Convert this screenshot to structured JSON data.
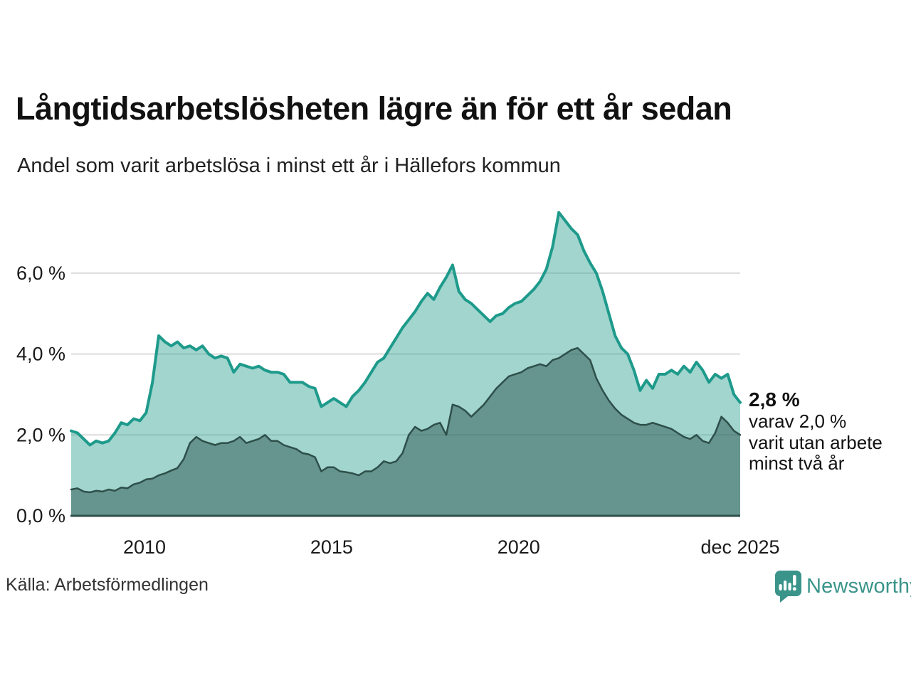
{
  "header": {
    "title": "Långtidsarbetslösheten lägre än för ett år sedan",
    "subtitle": "Andel som varit arbetslösa i minst ett år i Hällefors kommun"
  },
  "chart_data": {
    "type": "area",
    "title": "Långtidsarbetslösheten lägre än för ett år sedan",
    "subtitle": "Andel som varit arbetslösa i minst ett år i Hällefors kommun",
    "grid": "horizontal",
    "grid_color": "#dcdcdc",
    "axis_color": "#2e4f4a",
    "x_domain": [
      2008.04,
      2025.92
    ],
    "x_unit": "year, monthly series Jan 2008 – Dec 2025 (sampled bimonthly)",
    "ylim": [
      0,
      7.9
    ],
    "grid_values": [
      2,
      4,
      6
    ],
    "y_ticks": [
      {
        "label": "0,0 %",
        "value": 0
      },
      {
        "label": "2,0 %",
        "value": 2
      },
      {
        "label": "4,0 %",
        "value": 4
      },
      {
        "label": "6,0 %",
        "value": 6
      }
    ],
    "x_ticks": [
      {
        "label": "2010",
        "year": 2010
      },
      {
        "label": "2015",
        "year": 2015
      },
      {
        "label": "2020",
        "year": 2020
      },
      {
        "label": "dec 2025",
        "year": 2025.92
      }
    ],
    "series": [
      {
        "key": "arbetslosa-minst-ett-ar",
        "name": "Andel arbetslösa minst ett år",
        "color": "#1e9a8b",
        "fill": "rgba(30,154,139,0.42)",
        "last_value_label": "2,8 %",
        "values": [
          2.1,
          2.05,
          1.9,
          1.75,
          1.85,
          1.8,
          1.85,
          2.05,
          2.3,
          2.25,
          2.4,
          2.35,
          2.55,
          3.3,
          4.45,
          4.3,
          4.2,
          4.3,
          4.15,
          4.2,
          4.1,
          4.2,
          4.0,
          3.9,
          3.95,
          3.9,
          3.55,
          3.75,
          3.7,
          3.65,
          3.7,
          3.6,
          3.55,
          3.55,
          3.5,
          3.3,
          3.3,
          3.3,
          3.2,
          3.15,
          2.7,
          2.8,
          2.9,
          2.8,
          2.7,
          2.95,
          3.1,
          3.3,
          3.55,
          3.8,
          3.9,
          4.15,
          4.4,
          4.65,
          4.85,
          5.05,
          5.3,
          5.5,
          5.35,
          5.65,
          5.9,
          6.2,
          5.55,
          5.35,
          5.25,
          5.1,
          4.95,
          4.8,
          4.95,
          5.0,
          5.15,
          5.25,
          5.3,
          5.45,
          5.6,
          5.8,
          6.1,
          6.65,
          7.5,
          7.3,
          7.1,
          6.95,
          6.55,
          6.25,
          6.0,
          5.55,
          5.0,
          4.45,
          4.15,
          4.0,
          3.6,
          3.1,
          3.35,
          3.15,
          3.5,
          3.5,
          3.6,
          3.5,
          3.7,
          3.55,
          3.8,
          3.6,
          3.3,
          3.5,
          3.4,
          3.5,
          3.0,
          2.8
        ]
      },
      {
        "key": "varav-utan-arbete-minst-tva-ar",
        "name": "Varav utan arbete minst två år",
        "color": "#2e4f4a",
        "fill": "rgba(44,84,78,0.50)",
        "last_value_label": "2,0 %",
        "values": [
          0.65,
          0.68,
          0.6,
          0.58,
          0.62,
          0.6,
          0.65,
          0.62,
          0.7,
          0.68,
          0.78,
          0.82,
          0.9,
          0.92,
          1.0,
          1.05,
          1.12,
          1.18,
          1.4,
          1.8,
          1.95,
          1.85,
          1.8,
          1.75,
          1.8,
          1.8,
          1.85,
          1.95,
          1.8,
          1.85,
          1.9,
          2.0,
          1.85,
          1.85,
          1.75,
          1.7,
          1.65,
          1.55,
          1.52,
          1.45,
          1.1,
          1.2,
          1.2,
          1.1,
          1.08,
          1.05,
          1.0,
          1.1,
          1.1,
          1.2,
          1.35,
          1.3,
          1.35,
          1.55,
          2.0,
          2.2,
          2.1,
          2.15,
          2.25,
          2.3,
          2.0,
          2.75,
          2.7,
          2.6,
          2.45,
          2.6,
          2.75,
          2.95,
          3.15,
          3.3,
          3.45,
          3.5,
          3.55,
          3.65,
          3.7,
          3.75,
          3.7,
          3.85,
          3.9,
          4.0,
          4.1,
          4.15,
          4.0,
          3.85,
          3.4,
          3.1,
          2.85,
          2.65,
          2.5,
          2.4,
          2.3,
          2.25,
          2.25,
          2.3,
          2.25,
          2.2,
          2.15,
          2.05,
          1.95,
          1.9,
          2.0,
          1.85,
          1.8,
          2.05,
          2.45,
          2.3,
          2.1,
          2.0
        ]
      }
    ],
    "annotation": {
      "value_label": "2,8 %",
      "line1": "varav 2,0 %",
      "line2": "varit utan arbete",
      "line3": "minst två år"
    }
  },
  "source": {
    "label": "Källa: Arbetsförmedlingen"
  },
  "branding": {
    "name": "Newsworthy",
    "color": "#3a948a"
  }
}
